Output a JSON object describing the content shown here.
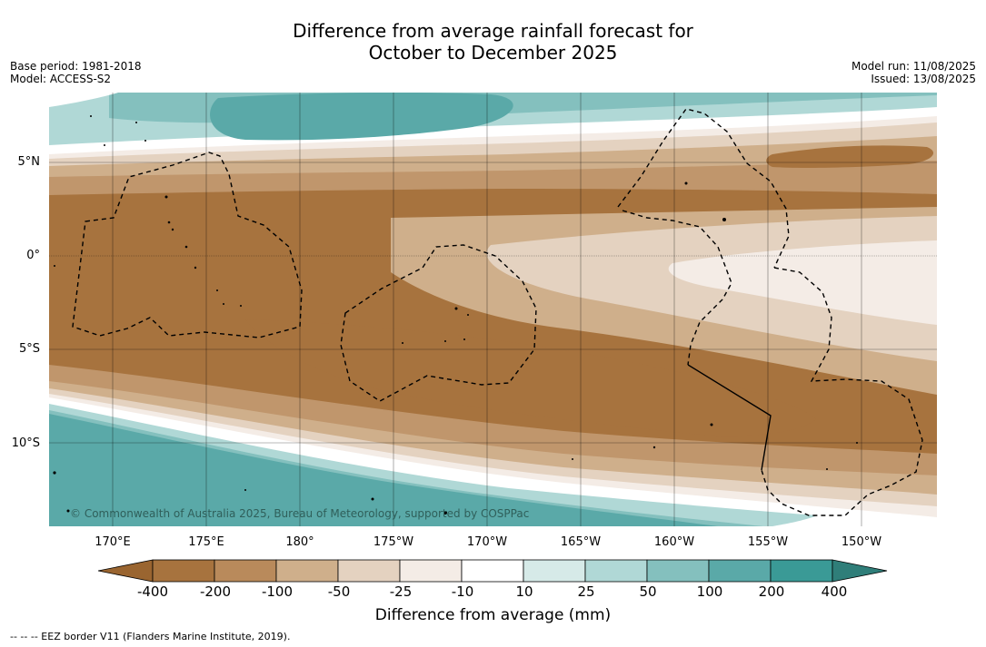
{
  "title": {
    "line1": "Difference from average rainfall forecast for",
    "line2": "October to December 2025"
  },
  "info_left": {
    "base_period": "Base period: 1981-2018",
    "model": "Model: ACCESS-S2"
  },
  "info_right": {
    "model_run": "Model run: 11/08/2025",
    "issued": "Issued: 13/08/2025"
  },
  "map": {
    "lat_labels": [
      "5°N",
      "0°",
      "5°S",
      "10°S"
    ],
    "lon_labels": [
      "170°E",
      "175°E",
      "180°",
      "175°W",
      "170°W",
      "165°W",
      "160°W",
      "155°W",
      "150°W"
    ],
    "copyright": "© Commonwealth of Australia 2025, Bureau of Meteorology, supported by COSPPac",
    "map_type": "filled contour map of rainfall anomaly with EEZ boundary overlay"
  },
  "colorbar": {
    "ticks": [
      "-400",
      "-200",
      "-100",
      "-50",
      "-25",
      "-10",
      "10",
      "25",
      "50",
      "100",
      "200",
      "400"
    ],
    "colors": [
      "#a7733e",
      "#b98a5b",
      "#cfaf8b",
      "#e4d2c0",
      "#f4ece6",
      "#ffffff",
      "#d6eae8",
      "#b0d8d6",
      "#84c0be",
      "#5aa9a8",
      "#3a9a96"
    ],
    "extend_low_color": "#9a6530",
    "extend_high_color": "#2f7e79",
    "label": "Difference from average (mm)"
  },
  "legend_note": "--  --  -- EEZ border V11 (Flanders Marine Institute, 2019)."
}
